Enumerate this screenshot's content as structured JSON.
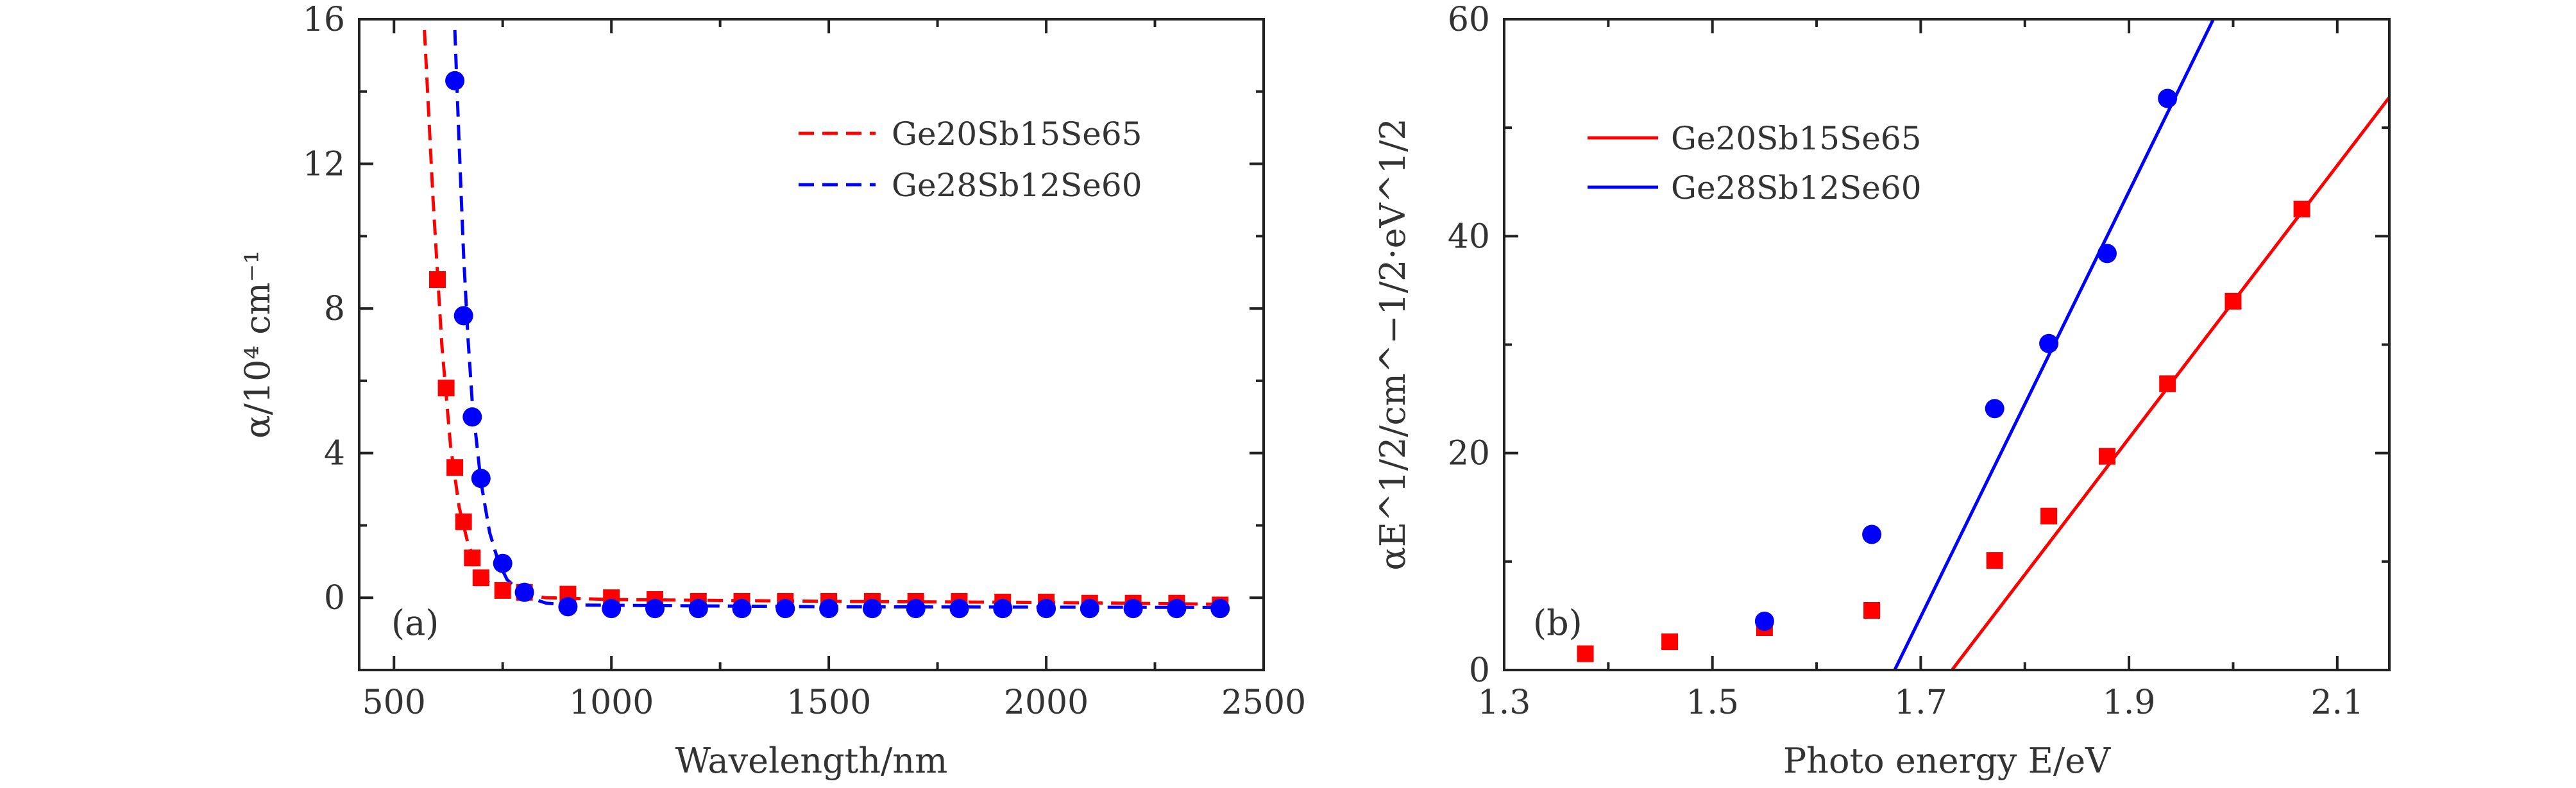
{
  "chart_data": [
    {
      "type": "scatter",
      "panel_label": "(a)",
      "xlabel": "Wavelength/nm",
      "ylabel": "α/10⁴ cm⁻¹",
      "xlim": [
        420,
        2500
      ],
      "ylim": [
        -2,
        16
      ],
      "xticks": [
        500,
        1000,
        1500,
        2000,
        2500
      ],
      "xtick_labels": [
        "500",
        "1000",
        "1500",
        "2000",
        "2500"
      ],
      "yticks": [
        0,
        4,
        8,
        12,
        16
      ],
      "ytick_labels": [
        "0",
        "4",
        "8",
        "12",
        "16"
      ],
      "legend_position": "top-right",
      "series": [
        {
          "name": "Ge20Sb15Se65",
          "color": "#ff0000",
          "marker": "square",
          "line": "dashed",
          "points": [
            [
              600,
              8.8
            ],
            [
              620,
              5.8
            ],
            [
              640,
              3.6
            ],
            [
              660,
              2.1
            ],
            [
              680,
              1.1
            ],
            [
              700,
              0.55
            ],
            [
              750,
              0.2
            ],
            [
              800,
              0.15
            ],
            [
              900,
              0.1
            ],
            [
              1000,
              0.0
            ],
            [
              1100,
              -0.05
            ],
            [
              1200,
              -0.1
            ],
            [
              1300,
              -0.1
            ],
            [
              1400,
              -0.1
            ],
            [
              1500,
              -0.1
            ],
            [
              1600,
              -0.1
            ],
            [
              1700,
              -0.1
            ],
            [
              1800,
              -0.1
            ],
            [
              1900,
              -0.12
            ],
            [
              2000,
              -0.12
            ],
            [
              2100,
              -0.15
            ],
            [
              2200,
              -0.15
            ],
            [
              2300,
              -0.15
            ],
            [
              2400,
              -0.2
            ]
          ],
          "fit": [
            [
              570,
              15.7
            ],
            [
              590,
              11.0
            ],
            [
              610,
              7.0
            ],
            [
              630,
              4.2
            ],
            [
              650,
              2.5
            ],
            [
              670,
              1.5
            ],
            [
              690,
              0.9
            ],
            [
              710,
              0.5
            ],
            [
              740,
              0.2
            ],
            [
              780,
              0.1
            ],
            [
              850,
              0.0
            ],
            [
              1000,
              -0.05
            ],
            [
              1500,
              -0.1
            ],
            [
              2000,
              -0.13
            ],
            [
              2400,
              -0.18
            ]
          ]
        },
        {
          "name": "Ge28Sb12Se60",
          "color": "#0000ff",
          "marker": "circle",
          "line": "dashed",
          "points": [
            [
              640,
              14.3
            ],
            [
              660,
              7.8
            ],
            [
              680,
              5.0
            ],
            [
              700,
              3.3
            ],
            [
              750,
              0.95
            ],
            [
              800,
              0.15
            ],
            [
              900,
              -0.25
            ],
            [
              1000,
              -0.3
            ],
            [
              1100,
              -0.3
            ],
            [
              1200,
              -0.3
            ],
            [
              1300,
              -0.3
            ],
            [
              1400,
              -0.3
            ],
            [
              1500,
              -0.3
            ],
            [
              1600,
              -0.3
            ],
            [
              1700,
              -0.3
            ],
            [
              1800,
              -0.3
            ],
            [
              1900,
              -0.3
            ],
            [
              2000,
              -0.3
            ],
            [
              2100,
              -0.3
            ],
            [
              2200,
              -0.3
            ],
            [
              2300,
              -0.3
            ],
            [
              2400,
              -0.3
            ]
          ],
          "fit": [
            [
              640,
              15.7
            ],
            [
              650,
              12.5
            ],
            [
              660,
              9.5
            ],
            [
              670,
              7.2
            ],
            [
              680,
              5.4
            ],
            [
              700,
              3.2
            ],
            [
              720,
              1.8
            ],
            [
              740,
              1.0
            ],
            [
              760,
              0.5
            ],
            [
              800,
              0.05
            ],
            [
              850,
              -0.15
            ],
            [
              900,
              -0.2
            ],
            [
              1500,
              -0.25
            ],
            [
              2400,
              -0.27
            ]
          ]
        }
      ]
    },
    {
      "type": "scatter",
      "panel_label": "(b)",
      "xlabel": "Photo energy E/eV",
      "ylabel": "αE^1/2/cm^−1/2·eV^1/2",
      "xlim": [
        1.3,
        2.15
      ],
      "ylim": [
        0,
        60
      ],
      "xticks": [
        1.3,
        1.5,
        1.7,
        1.9,
        2.1
      ],
      "xtick_labels": [
        "1.3",
        "1.5",
        "1.7",
        "1.9",
        "2.1"
      ],
      "yticks": [
        0,
        20,
        40,
        60
      ],
      "ytick_labels": [
        "0",
        "20",
        "40",
        "60"
      ],
      "legend_position": "top-left",
      "series": [
        {
          "name": "Ge20Sb15Se65",
          "color": "#ff0000",
          "marker": "square",
          "line": "solid",
          "points": [
            [
              1.378,
              1.5
            ],
            [
              1.459,
              2.6
            ],
            [
              1.55,
              3.9
            ],
            [
              1.653,
              5.5
            ],
            [
              1.771,
              10.1
            ],
            [
              1.823,
              14.2
            ],
            [
              1.879,
              19.7
            ],
            [
              1.937,
              26.4
            ],
            [
              2.0,
              34.0
            ],
            [
              2.066,
              42.5
            ]
          ],
          "fit": [
            [
              1.73,
              0
            ],
            [
              2.15,
              52.8
            ]
          ]
        },
        {
          "name": "Ge28Sb12Se60",
          "color": "#0000ff",
          "marker": "circle",
          "line": "solid",
          "points": [
            [
              1.55,
              4.5
            ],
            [
              1.653,
              12.5
            ],
            [
              1.771,
              24.1
            ],
            [
              1.823,
              30.1
            ],
            [
              1.879,
              38.4
            ],
            [
              1.937,
              52.7
            ]
          ],
          "fit": [
            [
              1.675,
              0
            ],
            [
              1.981,
              60
            ]
          ]
        }
      ]
    }
  ]
}
